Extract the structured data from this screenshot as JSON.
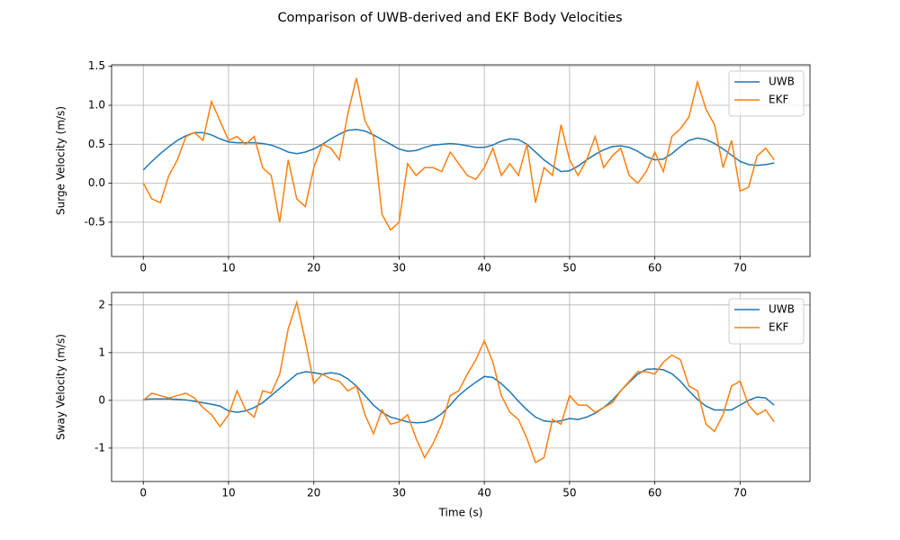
{
  "title": "Comparison of UWB-derived and EKF Body Velocities",
  "chart_data": [
    {
      "type": "line",
      "ylabel": "Surge Velocity (m/s)",
      "grid": true,
      "legend": "upper right",
      "xlim": [
        -3.72,
        78.2
      ],
      "ylim": [
        -0.94,
        1.52
      ],
      "xticks": [
        0,
        10,
        20,
        30,
        40,
        50,
        60,
        70
      ],
      "yticks": [
        -0.5,
        {
          "value": 0,
          "label": "0.0"
        },
        0.5,
        {
          "value": 1,
          "label": "1.0"
        },
        1.5
      ],
      "x": [
        0,
        1,
        2,
        3,
        4,
        5,
        6,
        7,
        8,
        9,
        10,
        11,
        12,
        13,
        14,
        15,
        16,
        17,
        18,
        19,
        20,
        21,
        22,
        23,
        24,
        25,
        26,
        27,
        28,
        29,
        30,
        31,
        32,
        33,
        34,
        35,
        36,
        37,
        38,
        39,
        40,
        41,
        42,
        43,
        44,
        45,
        46,
        47,
        48,
        49,
        50,
        51,
        52,
        53,
        54,
        55,
        56,
        57,
        58,
        59,
        60,
        61,
        62,
        63,
        64,
        65,
        66,
        67,
        68,
        69,
        70,
        71,
        72,
        73,
        74
      ],
      "series": [
        {
          "name": "UWB",
          "color": "#1f77b4",
          "values": [
            0.17,
            0.28,
            0.38,
            0.47,
            0.55,
            0.61,
            0.65,
            0.65,
            0.62,
            0.57,
            0.53,
            0.52,
            0.52,
            0.52,
            0.51,
            0.49,
            0.45,
            0.4,
            0.38,
            0.4,
            0.44,
            0.5,
            0.57,
            0.63,
            0.68,
            0.69,
            0.67,
            0.62,
            0.56,
            0.5,
            0.44,
            0.41,
            0.42,
            0.46,
            0.49,
            0.5,
            0.51,
            0.5,
            0.48,
            0.46,
            0.46,
            0.49,
            0.54,
            0.57,
            0.56,
            0.5,
            0.4,
            0.3,
            0.22,
            0.15,
            0.16,
            0.22,
            0.3,
            0.37,
            0.43,
            0.47,
            0.48,
            0.46,
            0.41,
            0.34,
            0.3,
            0.31,
            0.38,
            0.47,
            0.55,
            0.58,
            0.56,
            0.51,
            0.44,
            0.36,
            0.28,
            0.24,
            0.23,
            0.24,
            0.26
          ]
        },
        {
          "name": "EKF",
          "color": "#ff7f0e",
          "values": [
            0.0,
            -0.2,
            -0.25,
            0.1,
            0.3,
            0.6,
            0.65,
            0.55,
            1.05,
            0.8,
            0.55,
            0.6,
            0.5,
            0.6,
            0.2,
            0.1,
            -0.5,
            0.3,
            -0.2,
            -0.3,
            0.2,
            0.5,
            0.45,
            0.3,
            0.9,
            1.35,
            0.8,
            0.6,
            -0.4,
            -0.6,
            -0.5,
            0.25,
            0.1,
            0.2,
            0.2,
            0.15,
            0.4,
            0.25,
            0.1,
            0.05,
            0.2,
            0.45,
            0.1,
            0.25,
            0.1,
            0.5,
            -0.25,
            0.2,
            0.1,
            0.75,
            0.3,
            0.1,
            0.3,
            0.6,
            0.2,
            0.35,
            0.45,
            0.1,
            0.0,
            0.15,
            0.4,
            0.15,
            0.6,
            0.7,
            0.85,
            1.3,
            0.95,
            0.75,
            0.2,
            0.55,
            -0.1,
            -0.05,
            0.35,
            0.45,
            0.3
          ]
        }
      ]
    },
    {
      "type": "line",
      "ylabel": "Sway Velocity (m/s)",
      "xlabel": "Time (s)",
      "grid": true,
      "legend": "upper right",
      "xlim": [
        -3.72,
        78.2
      ],
      "ylim": [
        -1.7,
        2.26
      ],
      "xticks": [
        0,
        10,
        20,
        30,
        40,
        50,
        60,
        70
      ],
      "yticks": [
        -1,
        0,
        1,
        2
      ],
      "x": [
        0,
        1,
        2,
        3,
        4,
        5,
        6,
        7,
        8,
        9,
        10,
        11,
        12,
        13,
        14,
        15,
        16,
        17,
        18,
        19,
        20,
        21,
        22,
        23,
        24,
        25,
        26,
        27,
        28,
        29,
        30,
        31,
        32,
        33,
        34,
        35,
        36,
        37,
        38,
        39,
        40,
        41,
        42,
        43,
        44,
        45,
        46,
        47,
        48,
        49,
        50,
        51,
        52,
        53,
        54,
        55,
        56,
        57,
        58,
        59,
        60,
        61,
        62,
        63,
        64,
        65,
        66,
        67,
        68,
        69,
        70,
        71,
        72,
        73,
        74
      ],
      "series": [
        {
          "name": "UWB",
          "color": "#1f77b4",
          "values": [
            0.02,
            0.03,
            0.03,
            0.03,
            0.02,
            0.01,
            -0.02,
            -0.05,
            -0.08,
            -0.12,
            -0.22,
            -0.25,
            -0.22,
            -0.15,
            -0.05,
            0.1,
            0.25,
            0.4,
            0.55,
            0.6,
            0.58,
            0.55,
            0.58,
            0.55,
            0.45,
            0.3,
            0.1,
            -0.1,
            -0.25,
            -0.35,
            -0.4,
            -0.45,
            -0.47,
            -0.46,
            -0.4,
            -0.28,
            -0.1,
            0.1,
            0.25,
            0.38,
            0.5,
            0.48,
            0.35,
            0.18,
            -0.02,
            -0.2,
            -0.35,
            -0.43,
            -0.45,
            -0.43,
            -0.38,
            -0.4,
            -0.35,
            -0.27,
            -0.15,
            0.0,
            0.2,
            0.38,
            0.55,
            0.65,
            0.66,
            0.64,
            0.56,
            0.4,
            0.2,
            0.02,
            -0.12,
            -0.2,
            -0.2,
            -0.2,
            -0.1,
            0.0,
            0.07,
            0.05,
            -0.1
          ]
        },
        {
          "name": "EKF",
          "color": "#ff7f0e",
          "values": [
            0.0,
            0.15,
            0.1,
            0.05,
            0.1,
            0.15,
            0.05,
            -0.15,
            -0.3,
            -0.55,
            -0.3,
            0.2,
            -0.2,
            -0.35,
            0.2,
            0.15,
            0.55,
            1.5,
            2.05,
            1.25,
            0.35,
            0.55,
            0.45,
            0.4,
            0.2,
            0.3,
            -0.3,
            -0.7,
            -0.2,
            -0.5,
            -0.45,
            -0.3,
            -0.8,
            -1.2,
            -0.9,
            -0.5,
            0.1,
            0.2,
            0.55,
            0.85,
            1.25,
            0.8,
            0.1,
            -0.25,
            -0.4,
            -0.8,
            -1.3,
            -1.2,
            -0.4,
            -0.5,
            0.1,
            -0.1,
            -0.1,
            -0.25,
            -0.15,
            -0.05,
            0.2,
            0.4,
            0.6,
            0.6,
            0.55,
            0.8,
            0.95,
            0.85,
            0.3,
            0.2,
            -0.5,
            -0.65,
            -0.3,
            0.3,
            0.4,
            -0.1,
            -0.3,
            -0.2,
            -0.45
          ]
        }
      ]
    }
  ]
}
